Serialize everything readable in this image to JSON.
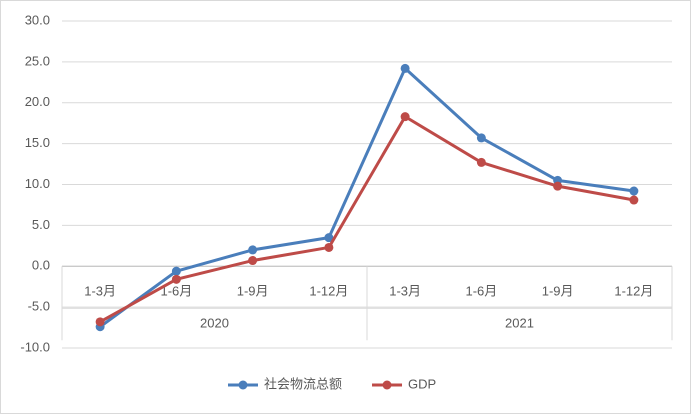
{
  "chart_data": {
    "type": "line",
    "categories": [
      "1-3月",
      "1-6月",
      "1-9月",
      "1-12月",
      "1-3月",
      "1-6月",
      "1-9月",
      "1-12月"
    ],
    "category_groups": [
      "2020",
      "2021"
    ],
    "series": [
      {
        "name": "社会物流总额",
        "color": "#4a7ebb",
        "values": [
          -7.4,
          -0.6,
          2.0,
          3.5,
          24.2,
          15.7,
          10.5,
          9.2
        ]
      },
      {
        "name": "GDP",
        "color": "#be4b48",
        "values": [
          -6.8,
          -1.6,
          0.7,
          2.3,
          18.3,
          12.7,
          9.8,
          8.1
        ]
      }
    ],
    "ylim": [
      -10,
      30
    ],
    "yticks": [
      {
        "value": -10,
        "label": "-10.0"
      },
      {
        "value": -5,
        "label": "-5.0"
      },
      {
        "value": 0,
        "label": "0.0"
      },
      {
        "value": 5,
        "label": "5.0"
      },
      {
        "value": 10,
        "label": "10.0"
      },
      {
        "value": 15,
        "label": "15.0"
      },
      {
        "value": 20,
        "label": "20.0"
      },
      {
        "value": 25,
        "label": "25.0"
      },
      {
        "value": 30,
        "label": "30.0"
      }
    ],
    "grid": true,
    "legend": "bottom"
  }
}
